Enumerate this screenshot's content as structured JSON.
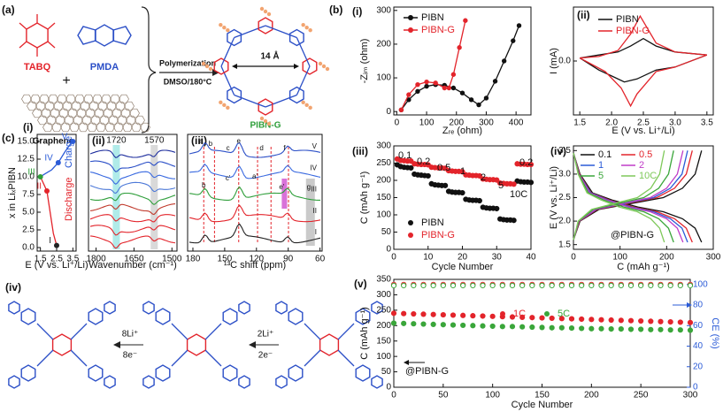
{
  "panel_a": {
    "panel": "(a)",
    "monomer1": "TABQ",
    "monomer2": "PMDA",
    "plus": "+",
    "support": "Graphene",
    "condition1": "Polymerization",
    "condition2": "DMSO/180°C",
    "pore": "14 Å",
    "product": "PIBN-G"
  },
  "panel_b": {
    "panel": "(b)"
  },
  "panel_c": {
    "panel": "(c)"
  },
  "scheme": {
    "panel": "(iv)",
    "step1_top": "8Li⁺",
    "step1_bottom": "8e⁻",
    "step2_top": "2Li⁺",
    "step2_bottom": "2e⁻"
  },
  "chart_data": [
    {
      "type": "line",
      "panel": "(i)",
      "xlabel": "E (V vs. Li⁺/Li)",
      "ylabel": "x in LiₓPIBN",
      "xlim": [
        1.3,
        3.7
      ],
      "xticks": [
        1.5,
        2.5,
        3.5
      ],
      "ylim": [
        -0.5,
        16
      ],
      "yticks": [
        {
          "value": 0,
          "label": "0.0"
        },
        2.5,
        {
          "value": 5,
          "label": "5.0"
        },
        7.5,
        {
          "value": 10,
          "label": "10.0"
        },
        12.5,
        {
          "value": 15,
          "label": "15.0"
        }
      ],
      "series": [
        {
          "color": "#e3242b",
          "x": [
            2.5,
            2.3,
            1.9,
            1.6,
            1.5
          ],
          "values": [
            0.3,
            2,
            8,
            9.5,
            10
          ]
        },
        {
          "color": "#2b5bd7",
          "x": [
            1.5,
            1.7,
            2.2,
            2.6,
            3.0,
            3.4,
            3.5
          ],
          "values": [
            10,
            10.3,
            11,
            12,
            13.5,
            14.8,
            15
          ]
        }
      ],
      "points": [
        {
          "label": "I",
          "x": 2.5,
          "y": 0.3,
          "color": "#222222"
        },
        {
          "label": "II",
          "x": 1.9,
          "y": 8,
          "color": "#e3242b"
        },
        {
          "label": "III",
          "x": 1.5,
          "y": 10,
          "color": "#2e9e3a"
        },
        {
          "label": "IV",
          "x": 2.6,
          "y": 12,
          "color": "#2b5bd7"
        },
        {
          "label": "V",
          "x": 3.5,
          "y": 15,
          "color": "#2b5bd7"
        }
      ],
      "annotations": [
        "Discharge",
        "Charge"
      ]
    },
    {
      "type": "spectra",
      "panel": "(ii)",
      "xlabel": "Wavenumber (cm⁻¹)",
      "xlim": [
        1830,
        1480
      ],
      "xticks": [
        1800,
        1650,
        1500
      ],
      "bands": [
        1720,
        1570
      ]
    },
    {
      "type": "spectra",
      "panel": "(iii)",
      "xlabel": "¹³C shift (ppm)",
      "xlim": [
        185,
        58
      ],
      "xticks": [
        180,
        150,
        120,
        90,
        60
      ],
      "trace_labels": [
        "V",
        "IV",
        "III",
        "II",
        "I"
      ],
      "peak_labels": [
        "a",
        "b",
        "c",
        "e",
        "d",
        "f",
        "b",
        "c'",
        "a'",
        "e'",
        "g"
      ]
    },
    {
      "type": "line",
      "markers": true,
      "panel": "(i)",
      "xlabel": "Zᵣₑ (ohm)",
      "ylabel": "-Zᵢₘ (ohm)",
      "xlim": [
        -10,
        450
      ],
      "xticks": [
        0,
        100,
        200,
        300,
        400
      ],
      "ylim": [
        -10,
        310
      ],
      "yticks": [
        0,
        100,
        200,
        300
      ],
      "series": [
        {
          "name": "PIBN",
          "color": "#111111",
          "x": [
            15,
            40,
            70,
            100,
            130,
            160,
            190,
            220,
            250,
            275,
            300,
            330,
            360,
            390,
            410
          ],
          "values": [
            5,
            35,
            60,
            75,
            80,
            78,
            70,
            55,
            35,
            20,
            40,
            90,
            150,
            210,
            255
          ]
        },
        {
          "name": "PIBN-G",
          "color": "#e3242b",
          "x": [
            15,
            40,
            70,
            100,
            130,
            160,
            175,
            190,
            210,
            230
          ],
          "values": [
            5,
            50,
            80,
            88,
            85,
            70,
            70,
            110,
            190,
            270
          ]
        }
      ]
    },
    {
      "type": "line",
      "panel": "(ii)",
      "xlabel": "E (V vs. Li⁺/Li)",
      "ylabel": "I (mA)",
      "xlim": [
        1.4,
        3.6
      ],
      "xticks": [
        1.5,
        {
          "value": 2,
          "label": "2.0"
        },
        2.5,
        {
          "value": 3,
          "label": "3.0"
        },
        3.5
      ],
      "ylim": [
        -0.36,
        0.36
      ],
      "yticks": [
        {
          "value": 0,
          "label": "0.0"
        }
      ],
      "series": [
        {
          "name": "PIBN",
          "color": "#111111",
          "x": [
            1.5,
            1.8,
            2.1,
            2.3,
            2.5,
            2.7,
            3.0,
            3.5,
            3.0,
            2.7,
            2.4,
            2.2,
            2.0,
            1.8,
            1.5
          ],
          "values": [
            0.02,
            0.04,
            0.06,
            0.1,
            0.15,
            0.1,
            0.06,
            0.04,
            -0.04,
            -0.06,
            -0.12,
            -0.14,
            -0.1,
            -0.06,
            0.02
          ]
        },
        {
          "name": "PIBN-G",
          "color": "#e3242b",
          "x": [
            1.5,
            1.8,
            2.1,
            2.3,
            2.45,
            2.7,
            3.0,
            3.5,
            3.0,
            2.7,
            2.4,
            2.3,
            2.15,
            1.9,
            1.5
          ],
          "values": [
            0.02,
            0.03,
            0.07,
            0.18,
            0.3,
            0.12,
            0.06,
            0.04,
            -0.04,
            -0.07,
            -0.22,
            -0.3,
            -0.18,
            -0.07,
            0.02
          ]
        }
      ]
    },
    {
      "type": "scatter",
      "panel": "(iii)",
      "xlabel": "Cycle Number",
      "ylabel": "C (mAh g⁻¹)",
      "xlim": [
        0,
        40
      ],
      "xticks": [
        0,
        10,
        20,
        30,
        40
      ],
      "ylim": [
        0,
        300
      ],
      "yticks": [
        0,
        50,
        100,
        150,
        200,
        250,
        300
      ],
      "x": [
        1,
        2,
        3,
        4,
        5,
        6,
        7,
        8,
        9,
        10,
        11,
        12,
        13,
        14,
        15,
        16,
        17,
        18,
        19,
        20,
        21,
        22,
        23,
        24,
        25,
        26,
        27,
        28,
        29,
        30,
        31,
        32,
        33,
        34,
        35,
        36,
        37,
        38,
        39,
        40
      ],
      "series": [
        {
          "name": "PIBN",
          "color": "#111111",
          "values": [
            245,
            240,
            238,
            237,
            236,
            218,
            216,
            215,
            214,
            213,
            190,
            187,
            186,
            185,
            185,
            168,
            166,
            165,
            165,
            164,
            145,
            143,
            142,
            142,
            141,
            122,
            120,
            119,
            119,
            118,
            88,
            86,
            85,
            85,
            84,
            198,
            196,
            195,
            195,
            194
          ]
        },
        {
          "name": "PIBN-G",
          "color": "#e3242b",
          "values": [
            262,
            258,
            257,
            256,
            256,
            248,
            247,
            246,
            246,
            245,
            238,
            237,
            236,
            236,
            235,
            228,
            227,
            226,
            226,
            225,
            216,
            215,
            214,
            214,
            213,
            204,
            203,
            202,
            202,
            201,
            192,
            191,
            190,
            190,
            189,
            248,
            247,
            247,
            246,
            246
          ]
        }
      ],
      "annotations": [
        "0.1",
        "0.2",
        "0.5",
        "1",
        "2",
        "5",
        "10C",
        "0.2"
      ]
    },
    {
      "type": "line",
      "panel": "(iv)",
      "xlabel": "C (mAh g⁻¹)",
      "ylabel": "E (V vs. Li⁺/Li)",
      "xlim": [
        0,
        300
      ],
      "xticks": [
        0,
        100,
        200,
        300
      ],
      "ylim": [
        1.4,
        3.6
      ],
      "yticks": [
        1.5,
        {
          "value": 2,
          "label": "2.0"
        },
        2.5,
        {
          "value": 3,
          "label": "3.0"
        },
        3.5
      ],
      "series": [
        {
          "name": "0.1",
          "color": "#111111",
          "x": [
            0,
            14,
            41,
            83,
            138,
            193,
            234,
            261,
            275,
            null,
            0,
            14,
            55,
            138,
            193,
            234,
            261,
            275
          ],
          "values": [
            3.45,
            3.0,
            2.6,
            2.45,
            2.3,
            2.2,
            2.05,
            1.85,
            1.55,
            null,
            1.6,
            2.0,
            2.25,
            2.4,
            2.5,
            2.7,
            3.0,
            3.5
          ]
        },
        {
          "name": "0.5",
          "color": "#e3242b",
          "x": [
            0,
            13,
            38,
            77,
            128,
            179,
            217,
            242,
            255,
            null,
            0,
            13,
            51,
            128,
            179,
            217,
            242,
            255
          ],
          "values": [
            3.45,
            3.0,
            2.6,
            2.45,
            2.3,
            2.2,
            2.05,
            1.85,
            1.55,
            null,
            1.6,
            2.0,
            2.25,
            2.4,
            2.5,
            2.7,
            3.0,
            3.5
          ]
        },
        {
          "name": "1",
          "color": "#2b5bd7",
          "x": [
            0,
            12,
            37,
            74,
            123,
            172,
            208,
            233,
            245,
            null,
            0,
            12,
            49,
            123,
            172,
            208,
            233,
            245
          ],
          "values": [
            3.45,
            3.0,
            2.6,
            2.45,
            2.3,
            2.2,
            2.05,
            1.85,
            1.55,
            null,
            1.6,
            2.0,
            2.25,
            2.4,
            2.5,
            2.7,
            3.0,
            3.5
          ]
        },
        {
          "name": "2",
          "color": "#c03cc8",
          "x": [
            0,
            12,
            35,
            71,
            118,
            165,
            200,
            223,
            235,
            null,
            0,
            12,
            47,
            118,
            165,
            200,
            223,
            235
          ],
          "values": [
            3.45,
            3.0,
            2.6,
            2.45,
            2.3,
            2.2,
            2.05,
            1.85,
            1.55,
            null,
            1.6,
            2.0,
            2.25,
            2.4,
            2.5,
            2.7,
            3.0,
            3.5
          ]
        },
        {
          "name": "5",
          "color": "#3aa63a",
          "x": [
            0,
            11,
            32,
            65,
            108,
            151,
            183,
            204,
            215,
            null,
            0,
            11,
            43,
            108,
            151,
            183,
            204,
            215
          ],
          "values": [
            3.45,
            3.0,
            2.6,
            2.45,
            2.3,
            2.2,
            2.05,
            1.85,
            1.55,
            null,
            1.6,
            2.0,
            2.25,
            2.4,
            2.5,
            2.7,
            3.0,
            3.5
          ]
        },
        {
          "name": "10C",
          "color": "#7fc95a",
          "x": [
            0,
            10,
            29,
            59,
            98,
            137,
            166,
            185,
            195,
            null,
            0,
            10,
            39,
            98,
            137,
            166,
            185,
            195
          ],
          "values": [
            3.45,
            3.0,
            2.6,
            2.45,
            2.3,
            2.2,
            2.05,
            1.85,
            1.55,
            null,
            1.6,
            2.0,
            2.25,
            2.4,
            2.5,
            2.7,
            3.0,
            3.5
          ]
        }
      ],
      "annotations": [
        "@PIBN-G"
      ]
    },
    {
      "type": "scatter",
      "panel": "(v)",
      "xlabel": "Cycle Number",
      "ylabel": "C (mAh g⁻¹)",
      "y2label": "CE (%)",
      "xlim": [
        0,
        300
      ],
      "xticks": [
        0,
        50,
        100,
        150,
        200,
        250,
        300
      ],
      "ylim": [
        0,
        350
      ],
      "yticks": [
        0,
        50,
        100,
        150,
        200,
        250,
        300,
        350
      ],
      "y2lim": [
        0,
        105
      ],
      "y2ticks": [
        0,
        20,
        40,
        60,
        80,
        100
      ],
      "x": [
        0,
        10,
        20,
        30,
        40,
        50,
        60,
        70,
        80,
        90,
        100,
        110,
        120,
        130,
        140,
        150,
        160,
        170,
        180,
        190,
        200,
        210,
        220,
        230,
        240,
        250,
        260,
        270,
        280,
        290,
        300
      ],
      "series": [
        {
          "name": "1C",
          "color": "#e3242b",
          "values": [
            240,
            239,
            238,
            237,
            236,
            235,
            234,
            233,
            232,
            231,
            230,
            229,
            228,
            227,
            226,
            225,
            224,
            223,
            222,
            221,
            220,
            219,
            218,
            217,
            216,
            215,
            214,
            213,
            212,
            211,
            210
          ]
        },
        {
          "name": "5C",
          "color": "#3aa63a",
          "values": [
            208,
            207,
            206,
            205,
            204,
            203,
            202,
            201,
            200,
            199,
            198,
            197,
            197,
            196,
            195,
            194,
            193,
            193,
            192,
            191,
            190,
            190,
            189,
            189,
            188,
            188,
            187,
            187,
            186,
            186,
            185
          ]
        },
        {
          "color": "#e3242b",
          "axis": "y2",
          "values": [
            100,
            100,
            100,
            100,
            100,
            100,
            100,
            100,
            100,
            100,
            100,
            100,
            100,
            100,
            100,
            100,
            100,
            100,
            100,
            100,
            100,
            100,
            100,
            100,
            100,
            100,
            100,
            100,
            100,
            100,
            100
          ]
        },
        {
          "color": "#3aa63a",
          "axis": "y2",
          "values": [
            99,
            99,
            99,
            99,
            99,
            99,
            99,
            99,
            99,
            99,
            99,
            99,
            99,
            99,
            99,
            99,
            99,
            99,
            99,
            99,
            99,
            99,
            99,
            99,
            99,
            99,
            99,
            99,
            99,
            99,
            99
          ]
        }
      ],
      "annotations": [
        "@PIBN-G"
      ]
    }
  ]
}
